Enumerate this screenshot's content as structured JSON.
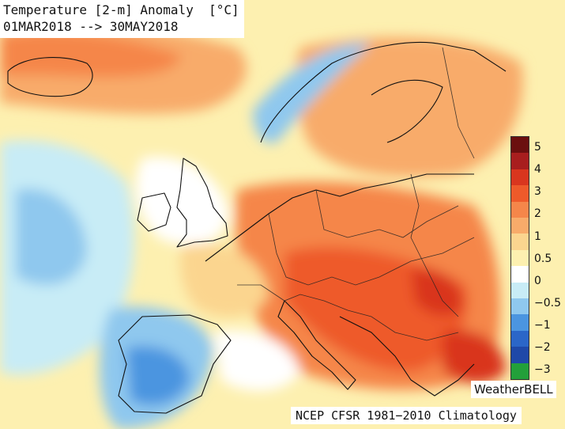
{
  "title": {
    "line1": "Temperature [2-m] Anomaly  [°C]",
    "line2": "01MAR2018 --> 30MAY2018"
  },
  "legend": {
    "colors": [
      "#6b0f0f",
      "#a81e1e",
      "#d9361e",
      "#ee5a2a",
      "#f5864a",
      "#f8ab6a",
      "#fbd58f",
      "#fdf0b0",
      "#ffffff",
      "#c8ecf6",
      "#8fc8ee",
      "#4b95e0",
      "#2b66c8",
      "#1f48a8",
      "#23a03a"
    ],
    "labels": [
      {
        "text": "5",
        "value": 5
      },
      {
        "text": "4",
        "value": 4
      },
      {
        "text": "3",
        "value": 3
      },
      {
        "text": "2",
        "value": 2
      },
      {
        "text": "1",
        "value": 1
      },
      {
        "text": "0.5",
        "value": 0.5
      },
      {
        "text": "0",
        "value": 0
      },
      {
        "text": "−0.5",
        "value": -0.5
      },
      {
        "text": "−1",
        "value": -1
      },
      {
        "text": "−2",
        "value": -2
      },
      {
        "text": "−3",
        "value": -3
      }
    ]
  },
  "brand": "WeatherBELL",
  "footer": "NCEP CFSR 1981−2010 Climatology"
}
